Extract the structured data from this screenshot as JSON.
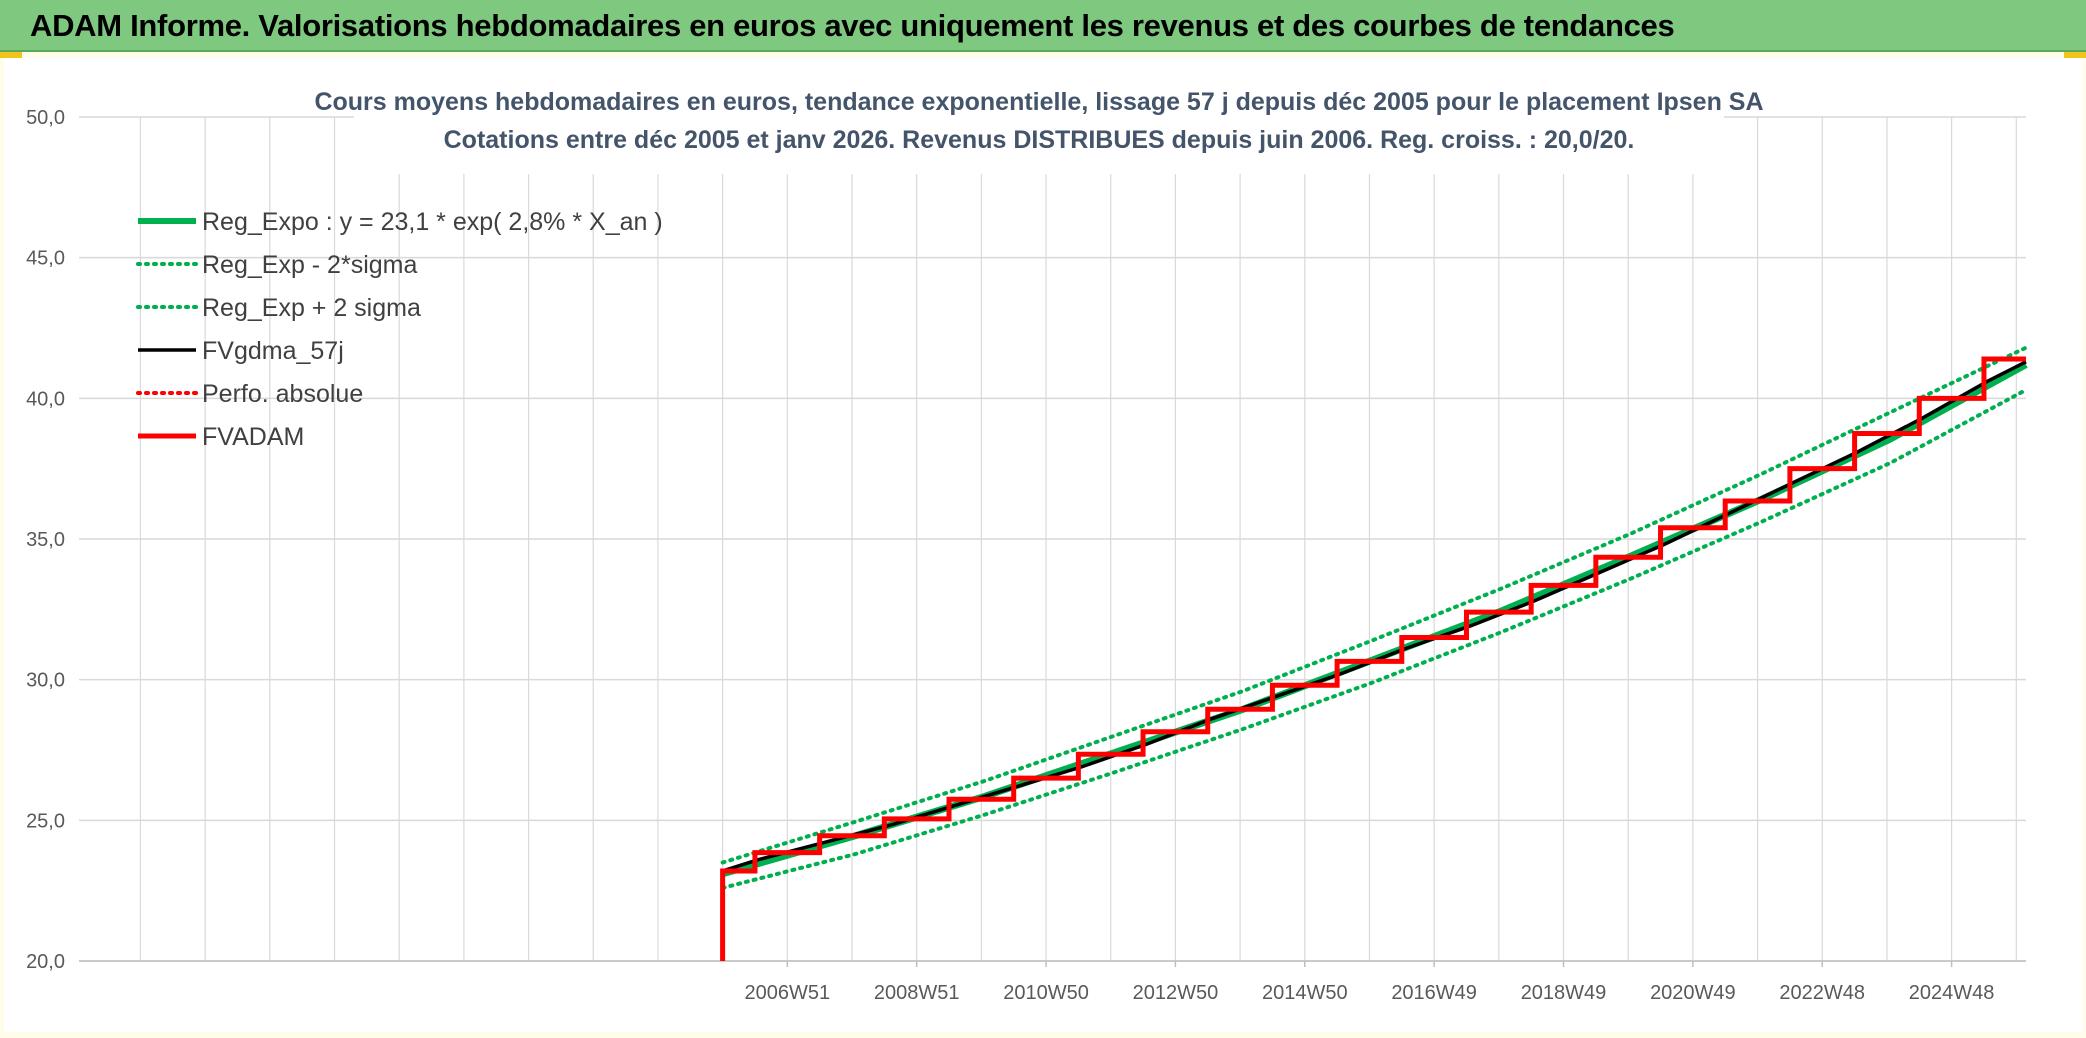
{
  "header": {
    "title": "ADAM Informe. Valorisations hebdomadaires en euros avec uniquement les revenus et des courbes de tendances"
  },
  "colors": {
    "banner": "#7ec97f",
    "trend": "#00b050",
    "fvgdma": "#000000",
    "fvadam": "#ff0000",
    "perfo": "#ff0000",
    "grid": "#d9d9d9",
    "title": "#44546a"
  },
  "chart_data": {
    "type": "line",
    "title": [
      "Cours moyens hebdomadaires en euros, tendance exponentielle, lissage 57 j depuis déc 2005 pour le placement Ipsen SA",
      "Cotations entre déc 2005 et janv 2026. Revenus DISTRIBUES depuis juin 2006. Reg. croiss. : 20,0/20."
    ],
    "xlabel": "",
    "ylabel": "",
    "ylim": [
      20,
      50
    ],
    "y_ticks": [
      "20,0",
      "25,0",
      "30,0",
      "35,0",
      "40,0",
      "45,0",
      "50,0"
    ],
    "x_tick_labels": [
      "2006W51",
      "2008W51",
      "2010W50",
      "2012W50",
      "2014W50",
      "2016W49",
      "2018W49",
      "2020W49",
      "2022W48",
      "2024W48"
    ],
    "x_range_years": [
      1996.0,
      2026.1
    ],
    "x_ticks_years": [
      2006.95,
      2008.95,
      2010.95,
      2012.95,
      2014.95,
      2016.95,
      2018.95,
      2020.95,
      2022.95,
      2024.95
    ],
    "grid": true,
    "legend_position": "top-left",
    "legend": [
      {
        "label": "Reg_Expo : y = 23,1 * exp( 2,8% *  X_an )",
        "series": "reg_expo"
      },
      {
        "label": "Reg_Exp - 2*sigma",
        "series": "reg_minus"
      },
      {
        "label": "Reg_Exp + 2 sigma",
        "series": "reg_plus"
      },
      {
        "label": "FVgdma_57j",
        "series": "fvgdma"
      },
      {
        "label": "Perfo. absolue",
        "series": "perfo"
      },
      {
        "label": "FVADAM",
        "series": "fvadam"
      }
    ],
    "series": {
      "reg_expo": {
        "style": "solid-thick",
        "color": "#00b050",
        "x": [
          2005.95,
          2008,
          2010,
          2012,
          2014,
          2016,
          2018,
          2020,
          2022,
          2024,
          2026.1
        ],
        "y": [
          23.1,
          24.45,
          25.85,
          27.4,
          28.95,
          30.7,
          32.45,
          34.4,
          36.4,
          38.55,
          41.2
        ]
      },
      "reg_minus": {
        "style": "dotted",
        "color": "#00b050",
        "x": [
          2005.95,
          2008,
          2010,
          2012,
          2014,
          2016,
          2018,
          2020,
          2022,
          2024,
          2026.1
        ],
        "y": [
          22.6,
          23.8,
          25.2,
          26.7,
          28.25,
          29.9,
          31.7,
          33.6,
          35.6,
          37.7,
          40.3
        ]
      },
      "reg_plus": {
        "style": "dotted",
        "color": "#00b050",
        "x": [
          2005.95,
          2008,
          2010,
          2012,
          2014,
          2016,
          2018,
          2020,
          2022,
          2024,
          2026.1
        ],
        "y": [
          23.5,
          24.95,
          26.4,
          28.0,
          29.6,
          31.4,
          33.25,
          35.2,
          37.3,
          39.5,
          41.8
        ]
      },
      "fvgdma": {
        "style": "solid",
        "color": "#000000",
        "x": [
          2005.95,
          2006.5,
          2007.5,
          2008.5,
          2009.5,
          2010.5,
          2011.5,
          2012.5,
          2013.5,
          2014.5,
          2015.5,
          2016.5,
          2017.5,
          2018.5,
          2019.5,
          2020.5,
          2021.5,
          2022.5,
          2023.5,
          2024.5,
          2025.5,
          2026.1
        ],
        "y": [
          23.2,
          23.6,
          24.2,
          24.8,
          25.5,
          26.2,
          26.9,
          27.7,
          28.6,
          29.4,
          30.2,
          31.1,
          31.9,
          32.8,
          33.8,
          34.8,
          35.9,
          37.0,
          38.1,
          39.3,
          40.6,
          41.3
        ]
      },
      "perfo": {
        "style": "dotted",
        "color": "#ff0000",
        "x": [],
        "y": []
      },
      "fvadam": {
        "style": "solid-thick-step",
        "color": "#ff0000",
        "x": [
          2005.95,
          2006.45,
          2007.45,
          2008.45,
          2009.45,
          2010.45,
          2011.45,
          2012.45,
          2013.45,
          2014.45,
          2015.45,
          2016.45,
          2017.45,
          2018.45,
          2019.45,
          2020.45,
          2021.45,
          2022.45,
          2023.45,
          2024.45,
          2025.45,
          2026.1
        ],
        "y": [
          23.2,
          23.85,
          24.45,
          25.05,
          25.75,
          26.5,
          27.35,
          28.15,
          28.95,
          29.8,
          30.65,
          31.5,
          32.4,
          33.35,
          34.35,
          35.4,
          36.35,
          37.5,
          38.75,
          40.0,
          41.4,
          41.4
        ],
        "start_drop_from": 20.0
      }
    }
  }
}
